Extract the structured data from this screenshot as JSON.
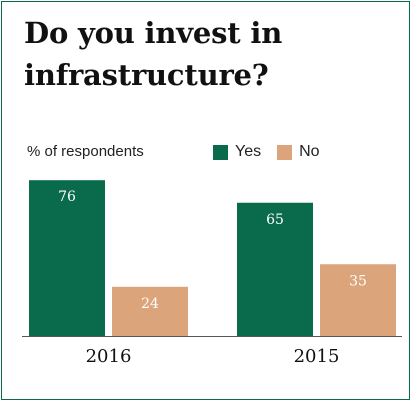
{
  "title": "Do you invest in infrastructure?",
  "subtitle": "% of respondents",
  "colors": {
    "yes": "#0a6b4c",
    "no": "#dca47b",
    "frame": "#0a6b4c"
  },
  "chart_data": {
    "type": "bar",
    "categories": [
      "2016",
      "2015"
    ],
    "series": [
      {
        "name": "Yes",
        "values": [
          76,
          65
        ]
      },
      {
        "name": "No",
        "values": [
          24,
          35
        ]
      }
    ],
    "ylabel": "% of respondents",
    "ylim": [
      0,
      80
    ],
    "grid": false,
    "legend": "top-right"
  }
}
